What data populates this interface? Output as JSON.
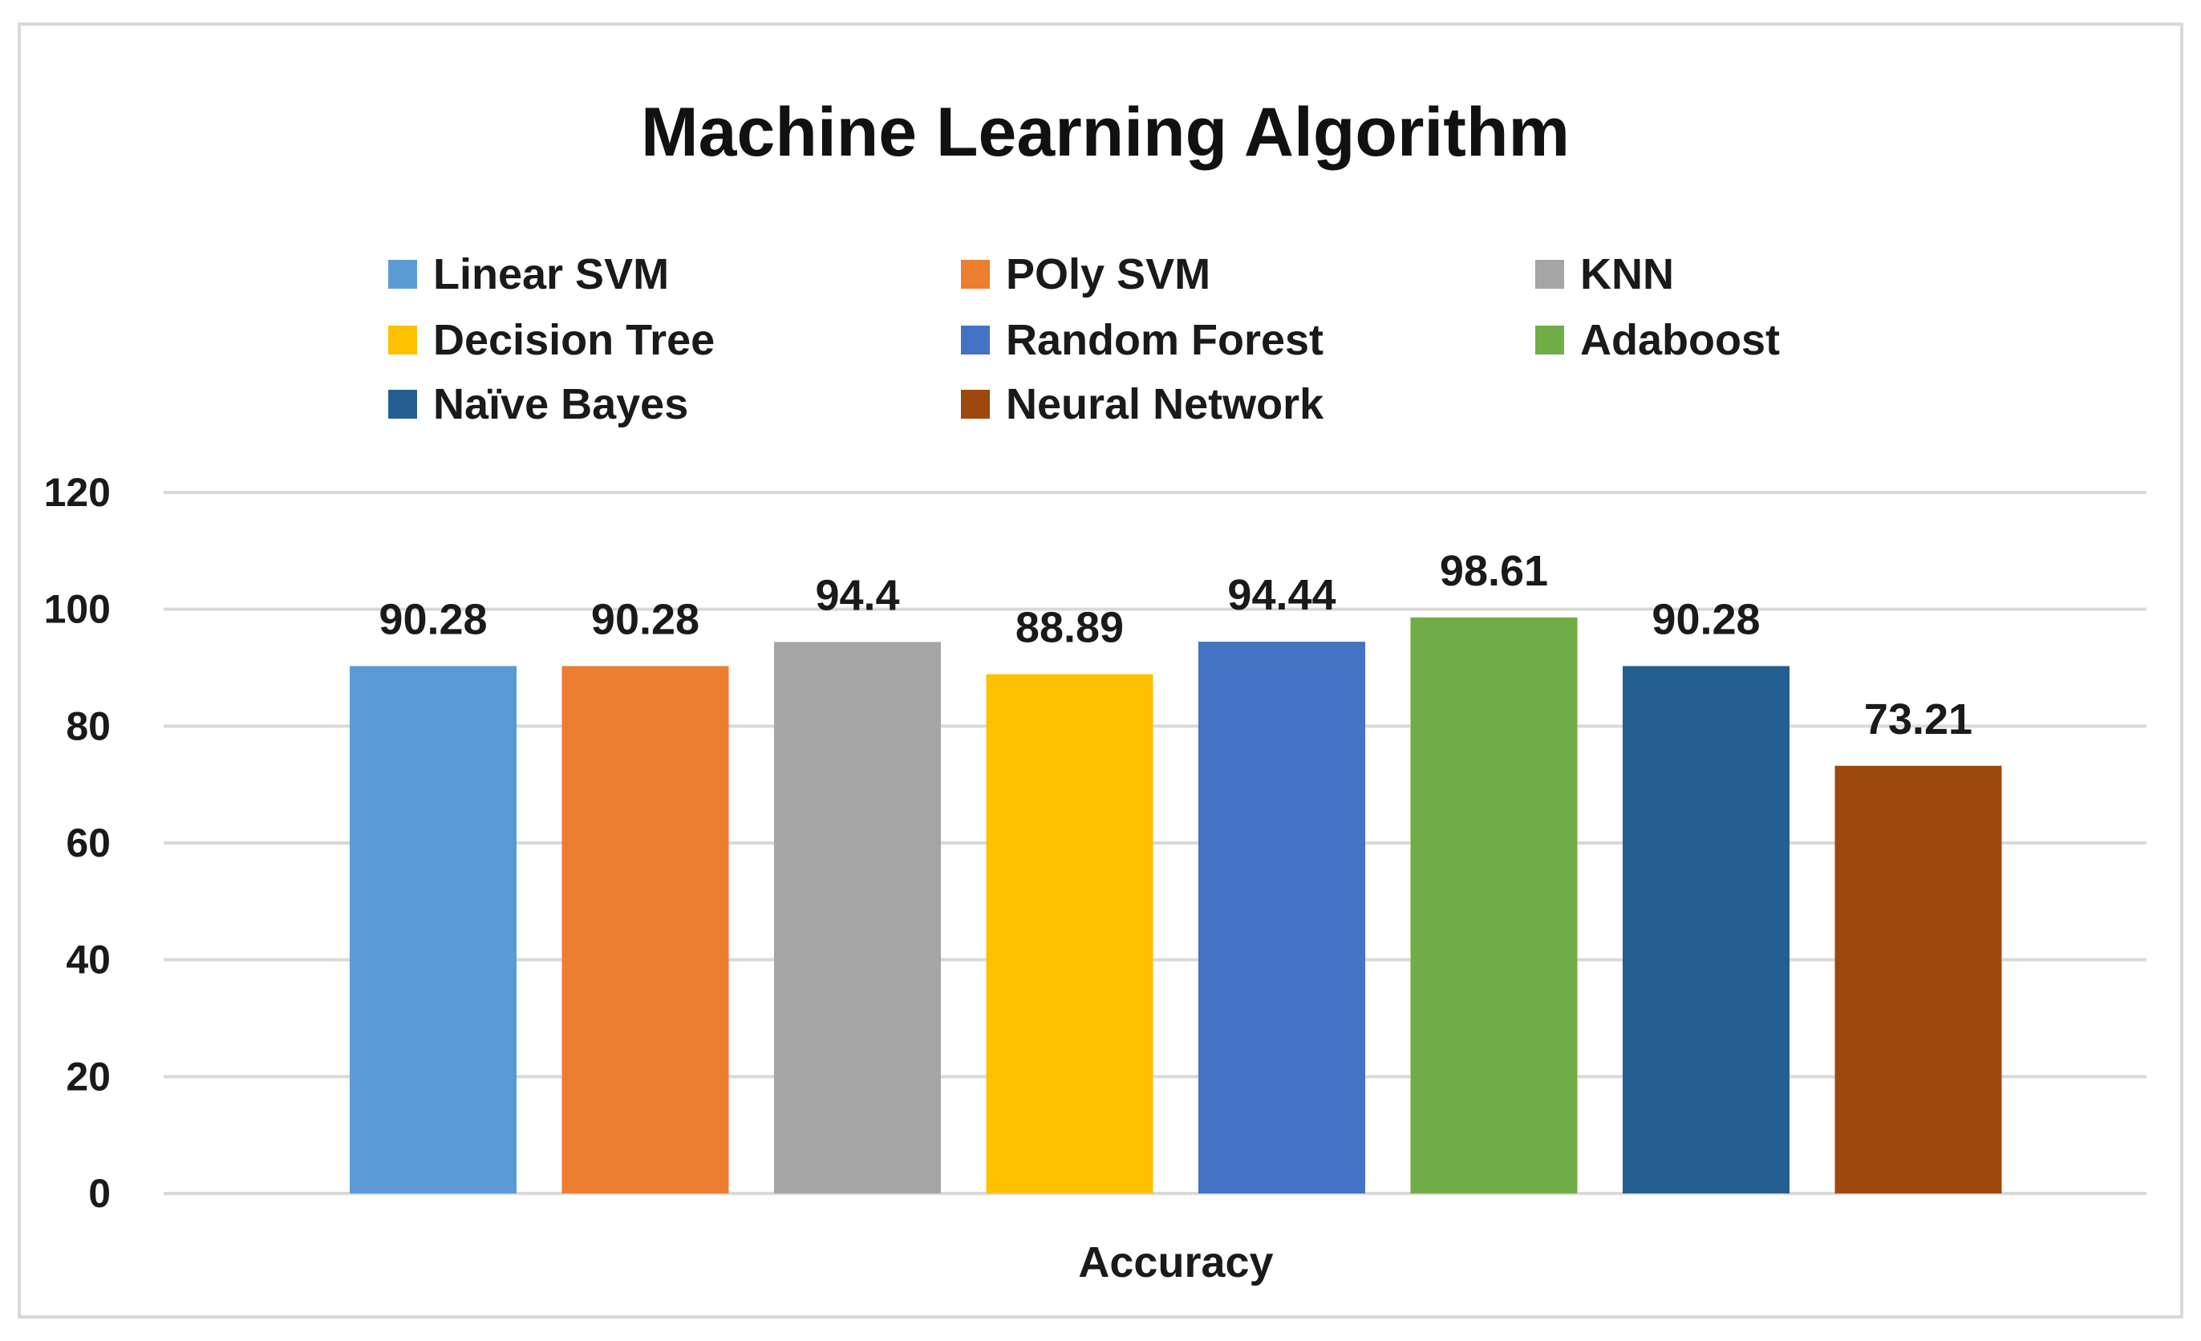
{
  "chart_data": {
    "type": "bar",
    "title": "Machine Learning Algorithm",
    "categories": [
      "Accuracy"
    ],
    "xlabel": "",
    "ylabel": "",
    "ylim": [
      0,
      120
    ],
    "yticks": [
      0,
      20,
      40,
      60,
      80,
      100,
      120
    ],
    "grid": true,
    "legend_position": "top",
    "series": [
      {
        "name": "Linear SVM",
        "values": [
          90.28
        ],
        "color": "#5b9bd5"
      },
      {
        "name": "POly SVM",
        "values": [
          90.28
        ],
        "color": "#ed7d31"
      },
      {
        "name": "KNN",
        "values": [
          94.4
        ],
        "color": "#a5a5a5"
      },
      {
        "name": "Decision Tree",
        "values": [
          88.89
        ],
        "color": "#ffc000"
      },
      {
        "name": "Random Forest",
        "values": [
          94.44
        ],
        "color": "#4472c4"
      },
      {
        "name": "Adaboost",
        "values": [
          98.61
        ],
        "color": "#70ad47"
      },
      {
        "name": "Naïve Bayes",
        "values": [
          90.28
        ],
        "color": "#255e91"
      },
      {
        "name": "Neural Network",
        "values": [
          73.21
        ],
        "color": "#9e480e"
      }
    ],
    "data_labels": [
      "90.28",
      "90.28",
      "94.4",
      "88.89",
      "94.44",
      "98.61",
      "90.28",
      "73.21"
    ]
  }
}
